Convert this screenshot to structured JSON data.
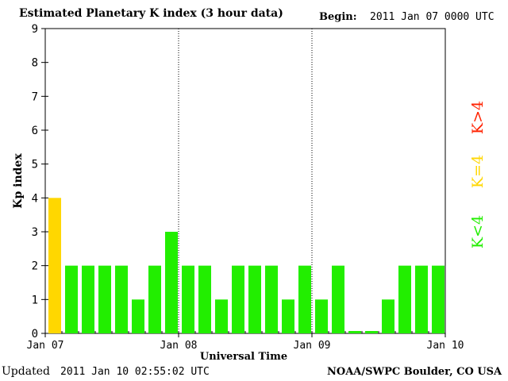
{
  "header": {
    "title": "Estimated Planetary K index (3 hour data)",
    "begin_label": "Begin:",
    "begin_value": "2011 Jan 07 0000 UTC"
  },
  "footer": {
    "updated_label": "Updated",
    "updated_value": "2011 Jan 10 02:55:02 UTC",
    "credit": "NOAA/SWPC Boulder, CO USA"
  },
  "legend": {
    "below": "K<4",
    "equal": "K=4",
    "above": "K>4"
  },
  "colors": {
    "below": "#22ee00",
    "equal": "#ffd700",
    "above": "#ff2200"
  },
  "chart_data": {
    "type": "bar",
    "title": "Estimated Planetary K index (3 hour data)",
    "xlabel": "Universal Time",
    "ylabel": "Kp index",
    "ylim": [
      0,
      9
    ],
    "yticks": [
      0,
      1,
      2,
      3,
      4,
      5,
      6,
      7,
      8,
      9
    ],
    "xticks": [
      "Jan 07",
      "Jan 08",
      "Jan 09",
      "Jan 10"
    ],
    "day_dividers": [
      "Jan 08",
      "Jan 09"
    ],
    "bars_per_day": 8,
    "values": [
      4,
      2,
      2,
      2,
      2,
      1,
      2,
      3,
      2,
      2,
      1,
      2,
      2,
      2,
      1,
      2,
      1,
      2,
      0.07,
      0.07,
      1,
      2,
      2,
      2
    ]
  }
}
